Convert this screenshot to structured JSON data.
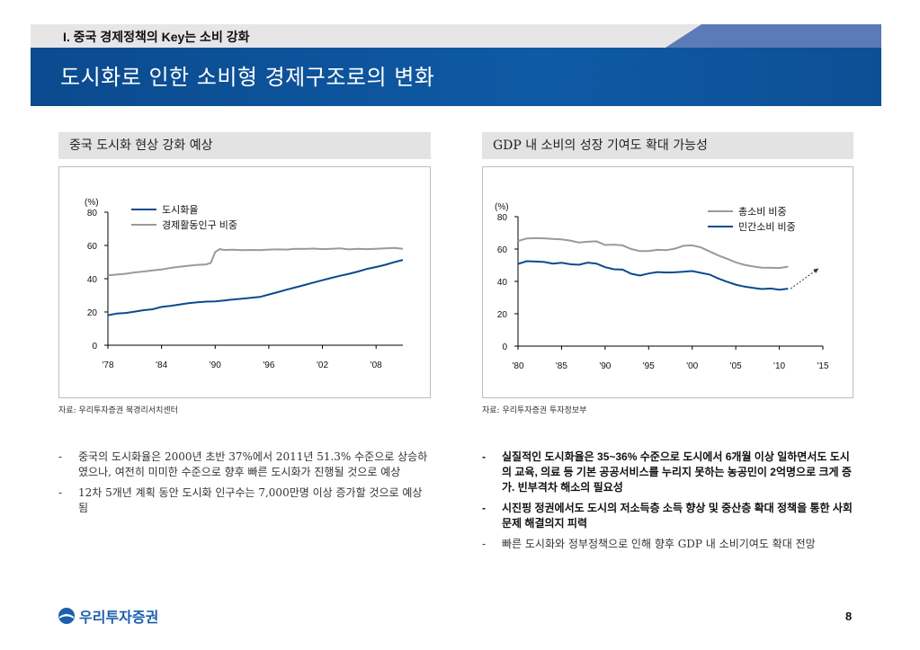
{
  "header": {
    "section_label": "I. 중국 경제정책의 Key는 소비 강화",
    "title": "도시화로 인한 소비형 경제구조로의 변화"
  },
  "left_panel": {
    "heading": "중국 도시화 현상 강화 예상",
    "source": "자료: 우리투자증권 북경리서치센터",
    "chart_data": {
      "type": "line",
      "ylabel": "(%)",
      "ylim": [
        0,
        80
      ],
      "yticks": [
        "0",
        "20",
        "40",
        "60",
        "80"
      ],
      "xlim": [
        1978,
        2011
      ],
      "xticks": [
        {
          "v": 1978,
          "label": "'78"
        },
        {
          "v": 1984,
          "label": "'84"
        },
        {
          "v": 1990,
          "label": "'90"
        },
        {
          "v": 1996,
          "label": "'96"
        },
        {
          "v": 2002,
          "label": "'02"
        },
        {
          "v": 2008,
          "label": "'08"
        }
      ],
      "legend_position": "top-left",
      "series": [
        {
          "name": "도시화율",
          "color": "#0b4a8e",
          "points": [
            [
              1978,
              18
            ],
            [
              1979,
              19
            ],
            [
              1980,
              19.4
            ],
            [
              1981,
              20.2
            ],
            [
              1982,
              21.1
            ],
            [
              1983,
              21.6
            ],
            [
              1984,
              23
            ],
            [
              1985,
              23.7
            ],
            [
              1986,
              24.5
            ],
            [
              1987,
              25.3
            ],
            [
              1988,
              25.8
            ],
            [
              1989,
              26.2
            ],
            [
              1990,
              26.4
            ],
            [
              1991,
              26.9
            ],
            [
              1992,
              27.5
            ],
            [
              1993,
              28
            ],
            [
              1994,
              28.5
            ],
            [
              1995,
              29
            ],
            [
              1996,
              30.5
            ],
            [
              1997,
              31.9
            ],
            [
              1998,
              33.4
            ],
            [
              1999,
              34.8
            ],
            [
              2000,
              36.2
            ],
            [
              2001,
              37.7
            ],
            [
              2002,
              39.1
            ],
            [
              2003,
              40.5
            ],
            [
              2004,
              41.8
            ],
            [
              2005,
              43
            ],
            [
              2006,
              44.3
            ],
            [
              2007,
              45.9
            ],
            [
              2008,
              47
            ],
            [
              2009,
              48.3
            ],
            [
              2010,
              49.9
            ],
            [
              2011,
              51.3
            ]
          ]
        },
        {
          "name": "경제활동인구 비중",
          "color": "#9a9a9a",
          "points": [
            [
              1978,
              42
            ],
            [
              1979,
              42.5
            ],
            [
              1980,
              43
            ],
            [
              1981,
              43.8
            ],
            [
              1982,
              44.3
            ],
            [
              1983,
              45
            ],
            [
              1984,
              45.5
            ],
            [
              1985,
              46.5
            ],
            [
              1986,
              47.2
            ],
            [
              1987,
              47.8
            ],
            [
              1988,
              48.3
            ],
            [
              1989,
              48.6
            ],
            [
              1989.5,
              49.5
            ],
            [
              1990,
              56
            ],
            [
              1990.5,
              57.8
            ],
            [
              1991,
              57.3
            ],
            [
              1992,
              57.4
            ],
            [
              1993,
              57.2
            ],
            [
              1994,
              57.3
            ],
            [
              1995,
              57.2
            ],
            [
              1996,
              57.5
            ],
            [
              1997,
              57.6
            ],
            [
              1998,
              57.5
            ],
            [
              1999,
              58
            ],
            [
              2000,
              57.9
            ],
            [
              2001,
              58.1
            ],
            [
              2002,
              57.8
            ],
            [
              2003,
              58
            ],
            [
              2004,
              58.2
            ],
            [
              2005,
              57.6
            ],
            [
              2006,
              58
            ],
            [
              2007,
              57.8
            ],
            [
              2008,
              58
            ],
            [
              2009,
              58.2
            ],
            [
              2010,
              58.5
            ],
            [
              2011,
              58
            ]
          ]
        }
      ]
    },
    "bullets": [
      "중국의 도시화율은 2000년 초반 37%에서 2011년 51.3% 수준으로 상승하였으나, 여전히 미미한 수준으로 향후 빠른 도시화가 진행될 것으로 예상",
      "12차 5개년 계획 동안 도시화 인구수는 7,000만명 이상 증가할 것으로 예상됨"
    ]
  },
  "right_panel": {
    "heading": "GDP 내 소비의 성장 기여도 확대 가능성",
    "source": "자료: 우리투자증권 투자정보부",
    "chart_data": {
      "type": "line",
      "ylabel": "(%)",
      "ylim": [
        0,
        80
      ],
      "yticks": [
        "0",
        "20",
        "40",
        "60",
        "80"
      ],
      "xlim": [
        1980,
        2015
      ],
      "xticks": [
        {
          "v": 1980,
          "label": "'80"
        },
        {
          "v": 1985,
          "label": "'85"
        },
        {
          "v": 1990,
          "label": "'90"
        },
        {
          "v": 1995,
          "label": "'95"
        },
        {
          "v": 2000,
          "label": "'00"
        },
        {
          "v": 2005,
          "label": "'05"
        },
        {
          "v": 2010,
          "label": "'10"
        },
        {
          "v": 2015,
          "label": "'15"
        }
      ],
      "legend_position": "top-right",
      "series": [
        {
          "name": "총소비 비중",
          "color": "#9a9a9a",
          "points": [
            [
              1980,
              65
            ],
            [
              1981,
              66.5
            ],
            [
              1982,
              66.7
            ],
            [
              1983,
              66.6
            ],
            [
              1984,
              66.3
            ],
            [
              1985,
              66
            ],
            [
              1986,
              65.2
            ],
            [
              1987,
              64
            ],
            [
              1988,
              64.5
            ],
            [
              1989,
              64.8
            ],
            [
              1990,
              62.5
            ],
            [
              1991,
              62.7
            ],
            [
              1992,
              62.3
            ],
            [
              1993,
              60
            ],
            [
              1994,
              58.7
            ],
            [
              1995,
              58.8
            ],
            [
              1996,
              59.5
            ],
            [
              1997,
              59.3
            ],
            [
              1998,
              60.2
            ],
            [
              1999,
              62
            ],
            [
              2000,
              62.3
            ],
            [
              2001,
              61
            ],
            [
              2002,
              58.5
            ],
            [
              2003,
              56
            ],
            [
              2004,
              54
            ],
            [
              2005,
              51.8
            ],
            [
              2006,
              50.2
            ],
            [
              2007,
              49.2
            ],
            [
              2008,
              48.5
            ],
            [
              2009,
              48.4
            ],
            [
              2010,
              48.3
            ],
            [
              2011,
              49.1
            ]
          ]
        },
        {
          "name": "민간소비 비중",
          "color": "#0b4a8e",
          "points": [
            [
              1980,
              50.8
            ],
            [
              1981,
              52.5
            ],
            [
              1982,
              52.3
            ],
            [
              1983,
              52
            ],
            [
              1984,
              51
            ],
            [
              1985,
              51.5
            ],
            [
              1986,
              50.6
            ],
            [
              1987,
              50.3
            ],
            [
              1988,
              51.6
            ],
            [
              1989,
              51
            ],
            [
              1990,
              48.8
            ],
            [
              1991,
              47.5
            ],
            [
              1992,
              47.3
            ],
            [
              1993,
              44.7
            ],
            [
              1994,
              43.6
            ],
            [
              1995,
              44.9
            ],
            [
              1996,
              45.8
            ],
            [
              1997,
              45.5
            ],
            [
              1998,
              45.6
            ],
            [
              1999,
              46
            ],
            [
              2000,
              46.4
            ],
            [
              2001,
              45.3
            ],
            [
              2002,
              44.2
            ],
            [
              2003,
              41.8
            ],
            [
              2004,
              39.8
            ],
            [
              2005,
              38
            ],
            [
              2006,
              36.8
            ],
            [
              2007,
              36
            ],
            [
              2008,
              35.3
            ],
            [
              2009,
              35.6
            ],
            [
              2010,
              34.9
            ],
            [
              2011,
              35.5
            ]
          ]
        }
      ],
      "annotation": {
        "type": "dotted-arrow",
        "from": [
          2011.3,
          35.5
        ],
        "to": [
          2014.5,
          48
        ]
      }
    },
    "bullets": [
      {
        "text": "실질적인 도시화율은 35~36% 수준으로 도시에서 6개월 이상 일하면서도 도시의 교육, 의료 등 기본 공공서비스를 누리지 못하는 농공민이 2억명으로 크게 증가. 빈부격차 해소의 필요성",
        "bold": true
      },
      {
        "text": "시진핑 정권에서도 도시의 저소득층 소득 향상 및 중산층 확대 정책을 통한 사회문제 해결의지 피력",
        "bold": true
      },
      {
        "text": "빠른 도시화와 정부정책으로 인해 향후 GDP 내 소비기여도 확대 전망",
        "bold": false
      }
    ]
  },
  "footer": {
    "logo_text": "우리투자증권",
    "page_number": "8"
  },
  "colors": {
    "banner": "#0f5aa5",
    "series_blue": "#0b4a8e",
    "series_gray": "#9a9a9a",
    "tab": "#5b7bb6"
  },
  "bullet_dash": "-"
}
